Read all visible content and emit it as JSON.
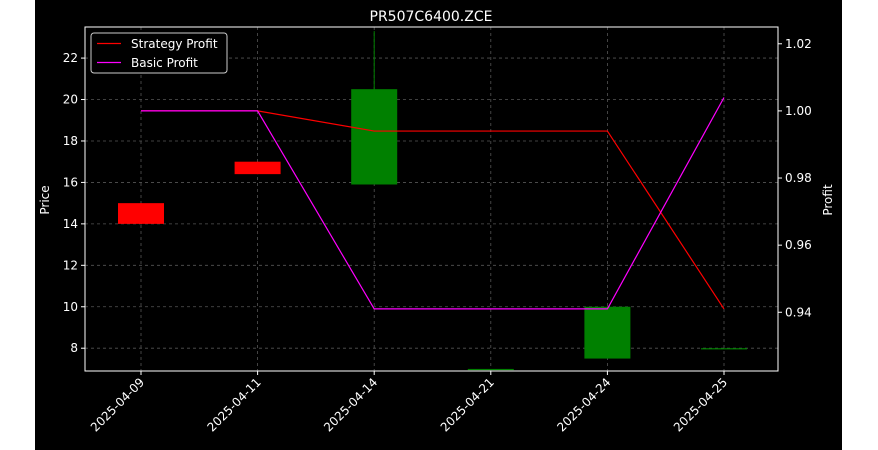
{
  "chart_data": {
    "type": "candlestick",
    "title": "PR507C6400.ZCE",
    "ylabel_left": "Price",
    "ylabel_right": "Profit",
    "categories": [
      "2025-04-09",
      "2025-04-11",
      "2025-04-14",
      "2025-04-21",
      "2025-04-24",
      "2025-04-25"
    ],
    "ylim_left": [
      6.9,
      23.5
    ],
    "ylim_right": [
      0.9225,
      1.025
    ],
    "yticks_left": [
      "8",
      "10",
      "12",
      "14",
      "16",
      "18",
      "20",
      "22"
    ],
    "yticks_right": [
      "0.94",
      "0.96",
      "0.98",
      "1.00",
      "1.02"
    ],
    "grid": true,
    "legend_position": "top-left",
    "candles": [
      {
        "date": "2025-04-09",
        "open": 15.0,
        "high": 15.0,
        "low": 14.0,
        "close": 14.0
      },
      {
        "date": "2025-04-11",
        "open": 17.0,
        "high": 17.0,
        "low": 16.4,
        "close": 16.4
      },
      {
        "date": "2025-04-14",
        "open": 15.9,
        "high": 23.3,
        "low": 15.9,
        "close": 20.5
      },
      {
        "date": "2025-04-21",
        "open": 7.0,
        "high": 7.0,
        "low": 7.0,
        "close": 7.0
      },
      {
        "date": "2025-04-24",
        "open": 7.5,
        "high": 10.0,
        "low": 7.5,
        "close": 10.0
      },
      {
        "date": "2025-04-25",
        "open": 8.0,
        "high": 8.0,
        "low": 8.0,
        "close": 8.0
      }
    ],
    "series": [
      {
        "name": "Strategy Profit",
        "color": "#ff0000",
        "values": [
          1.0,
          1.0,
          0.994,
          0.994,
          0.994,
          0.941
        ]
      },
      {
        "name": "Basic Profit",
        "color": "#ff00ff",
        "values": [
          1.0,
          1.0,
          0.941,
          0.941,
          0.941,
          1.004
        ]
      }
    ],
    "colors": {
      "up": "#008000",
      "down": "#ff0000",
      "background": "#000000",
      "grid": "#555555",
      "axes": "#ffffff"
    }
  }
}
